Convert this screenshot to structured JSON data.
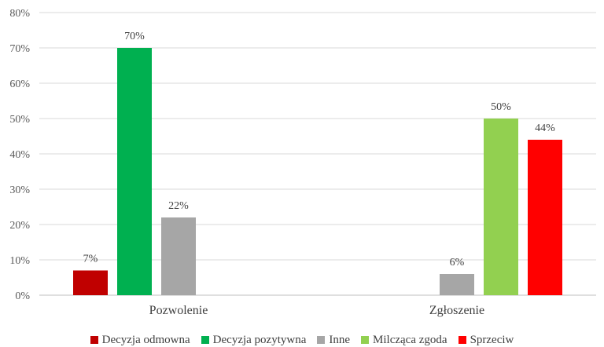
{
  "chart_data": {
    "type": "bar",
    "categories": [
      "Pozwolenie",
      "Zgłoszenie"
    ],
    "ylim": [
      0,
      80
    ],
    "yticks": [
      0,
      10,
      20,
      30,
      40,
      50,
      60,
      70,
      80
    ],
    "ytick_suffix": "%",
    "grid": true,
    "legend_position": "bottom",
    "series": [
      {
        "name": "Decyzja odmowna",
        "color": "#c00000",
        "values": [
          7,
          null
        ],
        "labels": [
          "7%",
          ""
        ]
      },
      {
        "name": "Decyzja pozytywna",
        "color": "#00b050",
        "values": [
          70,
          null
        ],
        "labels": [
          "70%",
          ""
        ]
      },
      {
        "name": "Inne",
        "color": "#a6a6a6",
        "values": [
          22,
          6
        ],
        "labels": [
          "22%",
          "6%"
        ]
      },
      {
        "name": "Milcząca zgoda",
        "color": "#92d050",
        "values": [
          null,
          50
        ],
        "labels": [
          "",
          "50%"
        ]
      },
      {
        "name": "Sprzeciw",
        "color": "#ff0000",
        "values": [
          null,
          44
        ],
        "labels": [
          "",
          "44%"
        ]
      }
    ]
  }
}
